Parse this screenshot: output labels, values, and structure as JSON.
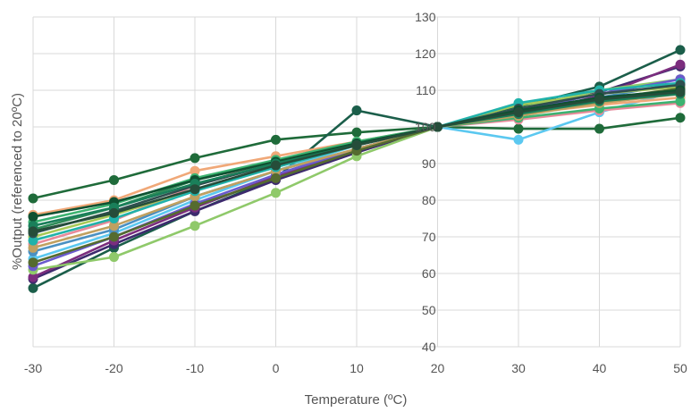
{
  "chart_data": {
    "type": "line",
    "title": "",
    "xlabel": "Temperature (ºC)",
    "ylabel": "%Output (referenced to 20ºC)",
    "xlim": [
      -30,
      50
    ],
    "ylim": [
      40,
      130
    ],
    "xticks": [
      -30,
      -20,
      -10,
      0,
      10,
      20,
      30,
      40,
      50
    ],
    "yticks": [
      40,
      50,
      60,
      70,
      80,
      90,
      100,
      110,
      120,
      130
    ],
    "grid": true,
    "legend": "none",
    "x": [
      -30,
      -20,
      -10,
      0,
      10,
      20,
      30,
      40,
      50
    ],
    "series": [
      {
        "color": "#1f6b3a",
        "values": [
          80.5,
          85.5,
          91.5,
          96.5,
          98.5,
          100,
          99.5,
          99.5,
          102.5
        ]
      },
      {
        "color": "#1b5e4a",
        "values": [
          56,
          67,
          77,
          86,
          104.5,
          100,
          105.5,
          111,
          121
        ]
      },
      {
        "color": "#3d2a6e",
        "values": [
          58.5,
          68,
          77,
          85.5,
          93,
          100,
          103.5,
          109.5,
          116.5
        ]
      },
      {
        "color": "#7b2d7e",
        "values": [
          59,
          69,
          78,
          86.5,
          94,
          100,
          103,
          108.5,
          117
        ]
      },
      {
        "color": "#5bc8f0",
        "values": [
          64,
          71,
          80,
          88,
          95,
          100,
          96.5,
          104,
          110
        ]
      },
      {
        "color": "#8fc96a",
        "values": [
          61,
          64.5,
          73,
          82,
          92,
          100,
          105,
          110,
          113
        ]
      },
      {
        "color": "#f0a878",
        "values": [
          76,
          80,
          88,
          92,
          96,
          100,
          103.5,
          106,
          108
        ]
      },
      {
        "color": "#e88a9a",
        "values": [
          68,
          74.5,
          84,
          91,
          95,
          100,
          102,
          104.5,
          106.5
        ]
      },
      {
        "color": "#2e8b57",
        "values": [
          72,
          78,
          85.5,
          90.5,
          95.5,
          100,
          103.5,
          107,
          110
        ]
      },
      {
        "color": "#4a90c2",
        "values": [
          66,
          72,
          81,
          88,
          94,
          100,
          104,
          108,
          112
        ]
      },
      {
        "color": "#6a5acd",
        "values": [
          62,
          70,
          79,
          87,
          94,
          100,
          104.5,
          109,
          113
        ]
      },
      {
        "color": "#a7c957",
        "values": [
          70,
          76,
          83,
          89,
          95,
          100,
          106,
          109,
          111
        ]
      },
      {
        "color": "#3cb371",
        "values": [
          74,
          79,
          86,
          91,
          96,
          100,
          102.5,
          105,
          107
        ]
      },
      {
        "color": "#c0a060",
        "values": [
          67,
          73,
          81,
          88,
          94,
          100,
          103,
          106.5,
          109
        ]
      },
      {
        "color": "#20b2aa",
        "values": [
          69,
          75,
          82.5,
          89,
          95,
          100,
          106.5,
          110,
          112
        ]
      },
      {
        "color": "#556b2f",
        "values": [
          63,
          70,
          78.5,
          86,
          93.5,
          100,
          104,
          107.5,
          110.5
        ]
      },
      {
        "color": "#2f4f4f",
        "values": [
          71,
          77,
          84,
          90,
          95.5,
          100,
          105,
          109,
          111.5
        ]
      },
      {
        "color": "#0f5132",
        "values": [
          75.5,
          79.5,
          85.5,
          90.5,
          95.5,
          100,
          104.5,
          108,
          110
        ]
      },
      {
        "color": "#1a7f5a",
        "values": [
          73,
          78,
          84.5,
          90,
          95,
          100,
          103.5,
          107,
          109
        ]
      },
      {
        "color": "#264d3a",
        "values": [
          71.5,
          76.5,
          83,
          89.5,
          95,
          100,
          104,
          107.5,
          109.5
        ]
      }
    ]
  }
}
